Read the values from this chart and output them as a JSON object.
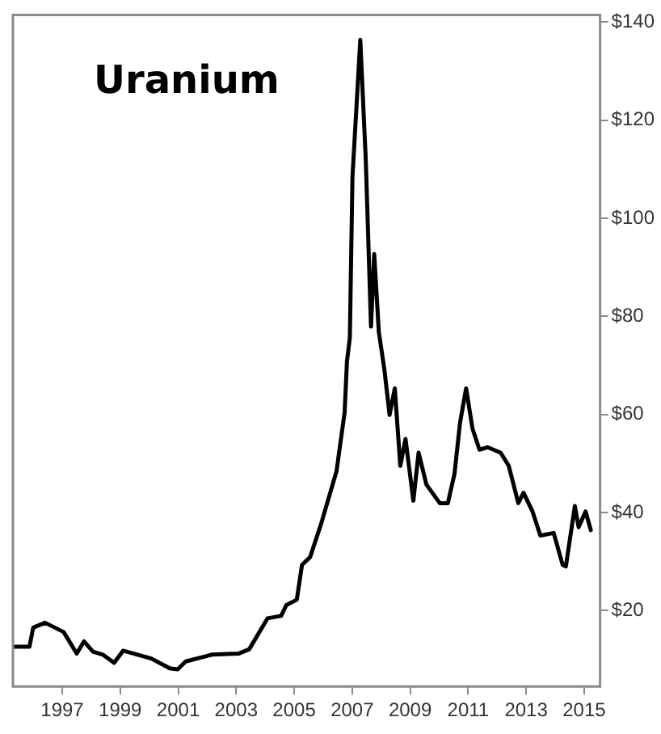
{
  "chart_data": {
    "type": "line",
    "title": "Uranium",
    "x": [
      1995.32,
      1995.87,
      1996.0,
      1996.41,
      1997.05,
      1997.5,
      1997.75,
      1998.06,
      1998.4,
      1998.79,
      1999.1,
      2000.07,
      2000.71,
      2000.98,
      2001.26,
      2002.17,
      2003.08,
      2003.45,
      2004.08,
      2004.55,
      2004.73,
      2005.09,
      2005.27,
      2005.55,
      2005.92,
      2006.46,
      2006.74,
      2006.82,
      2006.92,
      2007.01,
      2007.28,
      2007.47,
      2007.65,
      2007.76,
      2007.92,
      2008.11,
      2008.29,
      2008.47,
      2008.66,
      2008.84,
      2009.11,
      2009.29,
      2009.56,
      2010.02,
      2010.3,
      2010.53,
      2010.72,
      2010.93,
      2011.15,
      2011.39,
      2011.67,
      2012.12,
      2012.4,
      2012.73,
      2012.91,
      2013.22,
      2013.49,
      2013.95,
      2014.26,
      2014.37,
      2014.68,
      2014.81,
      2015.05,
      2015.23
    ],
    "series": [
      {
        "color": "#000000",
        "values": [
          12.6,
          12.6,
          16.5,
          17.5,
          15.6,
          11.2,
          13.7,
          11.6,
          11.0,
          9.3,
          11.8,
          10.2,
          8.2,
          8.0,
          9.6,
          11.0,
          11.2,
          12.1,
          18.4,
          18.9,
          21.1,
          22.2,
          29.3,
          30.9,
          37.5,
          48.4,
          60.4,
          70.8,
          75.7,
          108.5,
          136.4,
          111.8,
          77.9,
          92.7,
          76.8,
          69.2,
          59.9,
          65.3,
          49.5,
          55.0,
          42.4,
          52.2,
          45.7,
          41.9,
          41.9,
          47.9,
          58.3,
          65.3,
          57.1,
          52.8,
          53.3,
          52.2,
          49.5,
          41.9,
          44.0,
          40.2,
          35.3,
          35.8,
          29.3,
          29.0,
          41.3,
          37.0,
          40.2,
          36.4
        ]
      }
    ],
    "xlim": [
      1995.3,
      2015.55
    ],
    "xticks": [
      1997,
      1999,
      2001,
      2003,
      2005,
      2007,
      2009,
      2011,
      2013,
      2015
    ],
    "ylim": [
      4.5,
      141.5
    ],
    "yticks": [
      {
        "value": 20,
        "label": "$20"
      },
      {
        "value": 40,
        "label": "$40"
      },
      {
        "value": 60,
        "label": "$60"
      },
      {
        "value": 80,
        "label": "$80"
      },
      {
        "value": 100,
        "label": "$100"
      },
      {
        "value": 120,
        "label": "$120"
      },
      {
        "value": 140,
        "label": "$140"
      }
    ],
    "grid": false,
    "legend": false,
    "marker": "none",
    "line_style": "solid"
  }
}
